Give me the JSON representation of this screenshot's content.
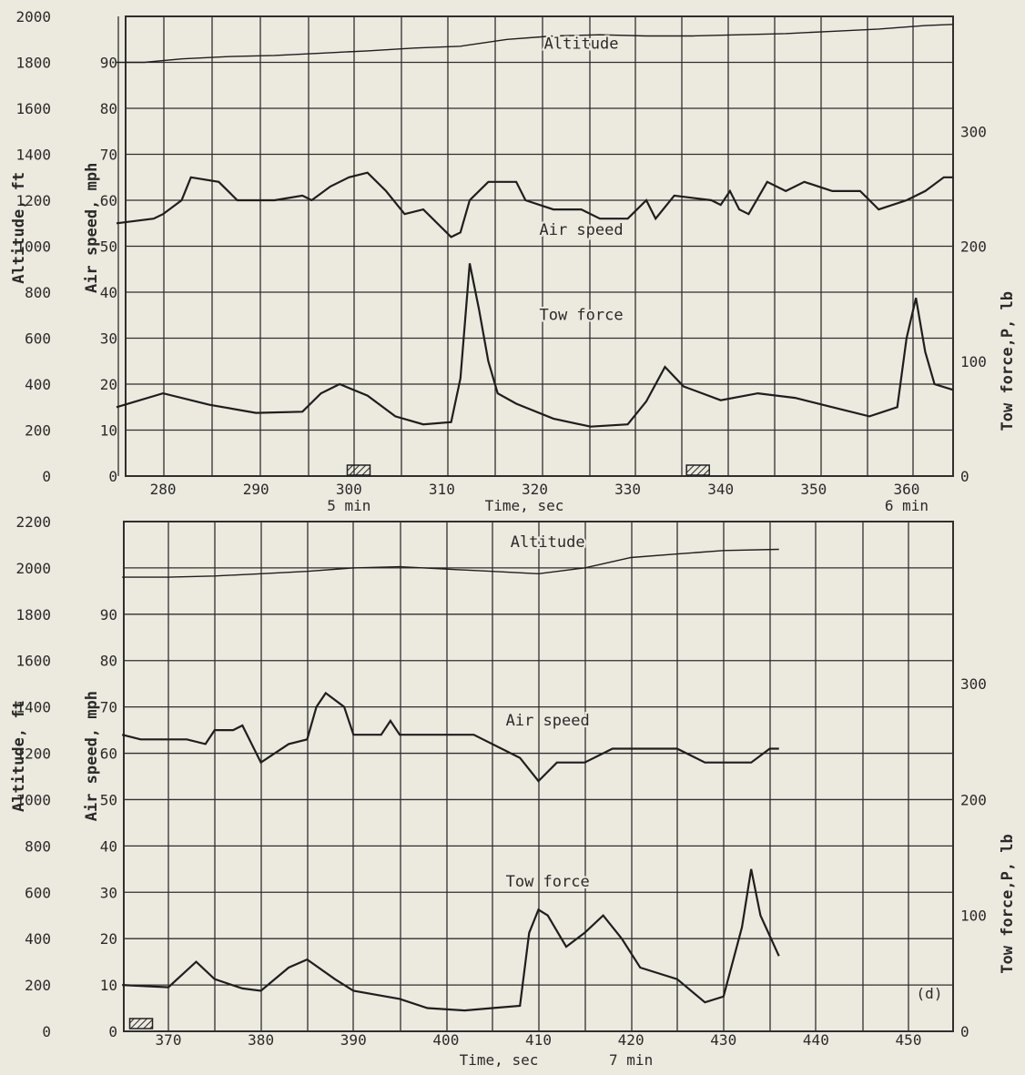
{
  "chart_data": [
    {
      "type": "line",
      "xlabel": "Time, sec",
      "x_ticks": [
        280,
        290,
        300,
        310,
        320,
        330,
        340,
        350,
        360
      ],
      "xlim": [
        275,
        365
      ],
      "time_marks": [
        {
          "x": 300,
          "label": "5 min"
        },
        {
          "x": 360,
          "label": "6 min"
        }
      ],
      "event_markers_x": [
        301,
        337.5
      ],
      "left_axis": {
        "label": "Altitude, ft",
        "ticks": [
          0,
          200,
          400,
          600,
          800,
          1000,
          1200,
          1400,
          1600,
          1800,
          2000
        ],
        "ylim": [
          0,
          2000
        ]
      },
      "mid_axis": {
        "label": "Air speed, mph",
        "ticks": [
          0,
          10,
          20,
          30,
          40,
          50,
          60,
          70,
          80,
          90
        ],
        "ylim": [
          0,
          100
        ]
      },
      "right_axis": {
        "label": "Tow force,P, lb",
        "ticks": [
          0,
          100,
          200,
          300
        ],
        "ylim": [
          0,
          400
        ]
      },
      "grid": true,
      "series": [
        {
          "name": "Altitude",
          "axis": "left",
          "label_at": [
            325,
            1860
          ],
          "x": [
            275,
            278,
            282,
            287,
            292,
            297,
            302,
            307,
            312,
            317,
            322,
            327,
            332,
            337,
            342,
            347,
            352,
            357,
            362,
            365
          ],
          "y": [
            1800,
            1800,
            1815,
            1825,
            1830,
            1840,
            1850,
            1862,
            1870,
            1900,
            1915,
            1920,
            1915,
            1915,
            1920,
            1925,
            1935,
            1945,
            1960,
            1965
          ]
        },
        {
          "name": "Air speed",
          "axis": "mid",
          "label_at": [
            325,
            52.5
          ],
          "x": [
            275,
            279,
            280,
            282,
            283,
            286,
            288,
            292,
            295,
            296,
            298,
            300,
            302,
            304,
            306,
            308,
            311,
            312,
            313,
            315,
            318,
            319,
            322,
            325,
            327,
            330,
            332,
            333,
            335,
            339,
            340,
            341,
            342,
            343,
            345,
            347,
            349,
            352,
            355,
            357,
            360,
            362,
            364,
            365
          ],
          "y": [
            55,
            56,
            57,
            60,
            65,
            64,
            60,
            60,
            61,
            60,
            63,
            65,
            66,
            62,
            57,
            58,
            52,
            53,
            60,
            64,
            64,
            60,
            58,
            58,
            56,
            56,
            60,
            56,
            61,
            60,
            59,
            62,
            58,
            57,
            64,
            62,
            64,
            62,
            62,
            58,
            60,
            62,
            65,
            65
          ]
        },
        {
          "name": "Tow force",
          "axis": "right",
          "label_at": [
            325,
            136
          ],
          "x": [
            275,
            280,
            285,
            290,
            295,
            297,
            299,
            302,
            305,
            308,
            311,
            312,
            313,
            314,
            315,
            316,
            318,
            322,
            326,
            330,
            332,
            334,
            336,
            340,
            344,
            348,
            352,
            356,
            359,
            360,
            361,
            362,
            363,
            365
          ],
          "y": [
            60,
            72,
            62,
            55,
            56,
            72,
            80,
            70,
            52,
            45,
            47,
            85,
            185,
            145,
            100,
            72,
            63,
            50,
            43,
            45,
            65,
            95,
            78,
            66,
            72,
            68,
            60,
            52,
            60,
            120,
            155,
            108,
            80,
            75
          ]
        }
      ]
    },
    {
      "type": "line",
      "xlabel": "Time, sec",
      "x_ticks": [
        370,
        380,
        390,
        400,
        410,
        420,
        430,
        440,
        450
      ],
      "xlim": [
        365,
        455
      ],
      "time_marks": [
        {
          "x": 420,
          "label": "7 min"
        }
      ],
      "event_markers_x": [
        367
      ],
      "panel_label": "(d)",
      "left_axis": {
        "label": "Altitude, ft",
        "ticks": [
          0,
          200,
          400,
          600,
          800,
          1000,
          1200,
          1400,
          1600,
          1800,
          2000,
          2200
        ],
        "ylim": [
          0,
          2200
        ]
      },
      "mid_axis": {
        "label": "Air speed, mph",
        "ticks": [
          0,
          10,
          20,
          30,
          40,
          50,
          60,
          70,
          80,
          90
        ],
        "ylim": [
          0,
          110
        ]
      },
      "right_axis": {
        "label": "Tow force,P, lb",
        "ticks": [
          0,
          100,
          200,
          300
        ],
        "ylim": [
          0,
          440
        ]
      },
      "grid": true,
      "series": [
        {
          "name": "Altitude",
          "axis": "left",
          "label_at": [
            411,
            2090
          ],
          "x": [
            365,
            370,
            375,
            380,
            385,
            390,
            395,
            400,
            405,
            410,
            415,
            420,
            425,
            430,
            436
          ],
          "y": [
            1960,
            1960,
            1965,
            1975,
            1985,
            2000,
            2005,
            1995,
            1985,
            1975,
            2000,
            2045,
            2060,
            2075,
            2080
          ]
        },
        {
          "name": "Air speed",
          "axis": "mid",
          "label_at": [
            411,
            66
          ],
          "x": [
            365,
            367,
            372,
            374,
            375,
            377,
            378,
            380,
            383,
            385,
            386,
            387,
            389,
            390,
            393,
            394,
            395,
            396,
            398,
            403,
            408,
            410,
            412,
            415,
            418,
            420,
            425,
            428,
            433,
            435,
            436
          ],
          "y": [
            64,
            63,
            63,
            62,
            65,
            65,
            66,
            58,
            62,
            63,
            70,
            73,
            70,
            64,
            64,
            67,
            64,
            64,
            64,
            64,
            59,
            54,
            58,
            58,
            61,
            61,
            61,
            58,
            58,
            61,
            61
          ]
        },
        {
          "name": "Tow force",
          "axis": "right",
          "label_at": [
            411,
            125
          ],
          "x": [
            365,
            370,
            373,
            375,
            378,
            380,
            383,
            385,
            388,
            390,
            395,
            398,
            402,
            405,
            408,
            409,
            410,
            411,
            413,
            415,
            417,
            419,
            421,
            425,
            428,
            430,
            432,
            433,
            434,
            436
          ],
          "y": [
            40,
            38,
            60,
            45,
            37,
            35,
            55,
            62,
            45,
            35,
            28,
            20,
            18,
            20,
            22,
            85,
            105,
            100,
            73,
            85,
            100,
            80,
            55,
            45,
            25,
            30,
            90,
            140,
            100,
            65
          ]
        }
      ]
    }
  ]
}
